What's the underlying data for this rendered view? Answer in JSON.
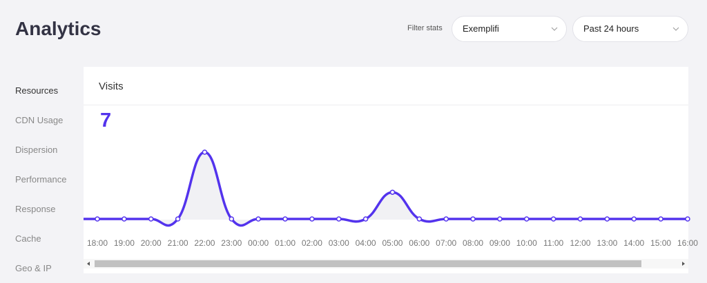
{
  "header": {
    "title": "Analytics",
    "filter_label": "Filter stats",
    "filters": [
      "Exemplifi",
      "Past 24 hours"
    ]
  },
  "nav": [
    "Resources",
    "CDN Usage",
    "Dispersion",
    "Performance",
    "Response",
    "Cache",
    "Geo & IP"
  ],
  "chart_data": {
    "type": "line",
    "title": "Visits",
    "total": 7,
    "color": "#5333ed",
    "categories": [
      "18:00",
      "19:00",
      "20:00",
      "21:00",
      "22:00",
      "23:00",
      "00:00",
      "01:00",
      "02:00",
      "03:00",
      "04:00",
      "05:00",
      "06:00",
      "07:00",
      "08:00",
      "09:00",
      "10:00",
      "11:00",
      "12:00",
      "13:00",
      "14:00",
      "15:00",
      "16:00"
    ],
    "values": [
      0,
      0,
      0,
      0,
      5,
      0,
      0,
      0,
      0,
      0,
      0,
      2,
      0,
      0,
      0,
      0,
      0,
      0,
      0,
      0,
      0,
      0,
      0
    ]
  }
}
